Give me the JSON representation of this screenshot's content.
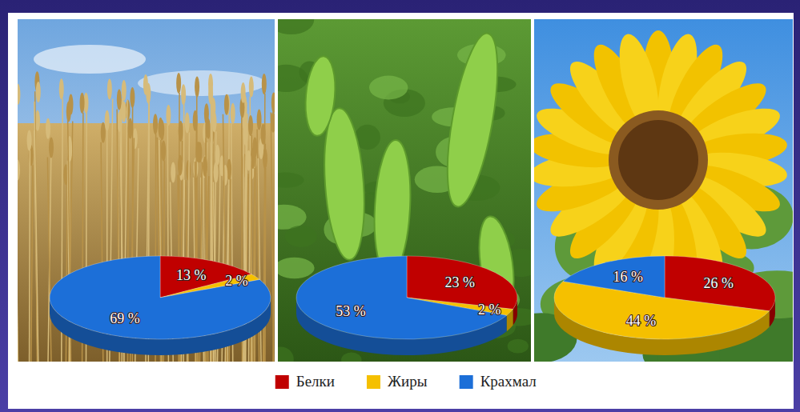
{
  "chart_data": [
    {
      "type": "pie",
      "categories": [
        "Белки",
        "Жиры",
        "Крахмал"
      ],
      "values": [
        13,
        2,
        69
      ],
      "value_labels": [
        "13 %",
        "2 %",
        "69 %"
      ],
      "colors": [
        "#c00000",
        "#f5c000",
        "#1c6fd8"
      ],
      "data_labels": true,
      "legend": "bottom"
    },
    {
      "type": "pie",
      "categories": [
        "Белки",
        "Жиры",
        "Крахмал"
      ],
      "values": [
        23,
        2,
        53
      ],
      "value_labels": [
        "23 %",
        "2 %",
        "53 %"
      ],
      "colors": [
        "#c00000",
        "#f5c000",
        "#1c6fd8"
      ],
      "data_labels": true
    },
    {
      "type": "pie",
      "categories": [
        "Белки",
        "Жиры",
        "Крахмал"
      ],
      "values": [
        26,
        44,
        16
      ],
      "value_labels": [
        "26 %",
        "44 %",
        "16 %"
      ],
      "colors": [
        "#c00000",
        "#f5c000",
        "#1c6fd8"
      ],
      "data_labels": true
    }
  ]
}
